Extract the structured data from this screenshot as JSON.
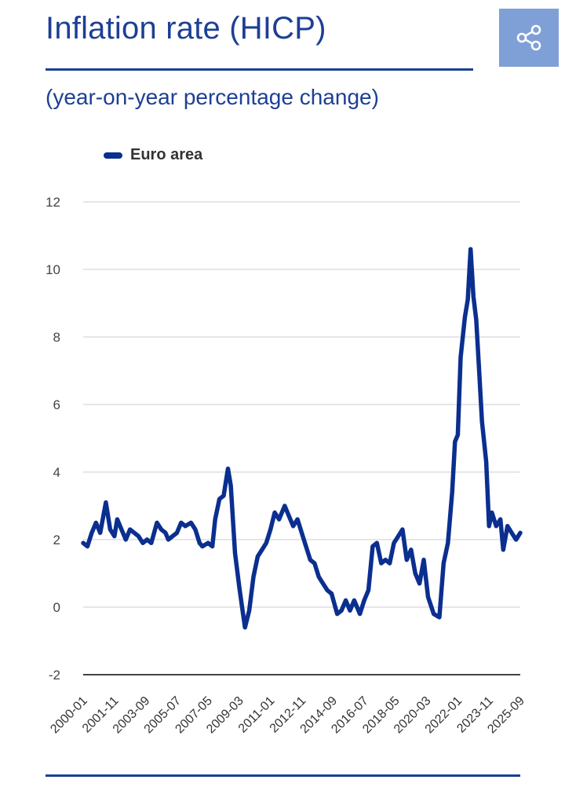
{
  "header": {
    "title": "Inflation rate (HICP)",
    "subtitle": "(year-on-year percentage change)",
    "share_icon": "share-icon"
  },
  "colors": {
    "accent": "#1d3f94",
    "series": "#0b2f8f",
    "share_bg": "#7fa0d6",
    "grid": "#dddddd"
  },
  "chart_data": {
    "type": "line",
    "title": "Inflation rate (HICP)",
    "subtitle": "(year-on-year percentage change)",
    "xlabel": "",
    "ylabel": "",
    "ylim": [
      -2,
      12
    ],
    "yticks": [
      "12",
      "10",
      "8",
      "6",
      "4",
      "2",
      "0",
      "-2"
    ],
    "xticks": [
      "2000-01",
      "2001-11",
      "2003-09",
      "2005-07",
      "2007-05",
      "2009-03",
      "2011-01",
      "2012-11",
      "2014-09",
      "2016-07",
      "2018-05",
      "2020-03",
      "2022-01",
      "2023-11",
      "2025-09"
    ],
    "grid": true,
    "legend": {
      "position": "top-left",
      "entries": [
        "Euro area"
      ]
    },
    "series": [
      {
        "name": "Euro area",
        "x": [
          "2000-01",
          "2000-04",
          "2000-07",
          "2000-10",
          "2001-01",
          "2001-05",
          "2001-08",
          "2001-11",
          "2002-01",
          "2002-04",
          "2002-07",
          "2002-10",
          "2003-01",
          "2003-04",
          "2003-07",
          "2003-10",
          "2004-01",
          "2004-05",
          "2004-08",
          "2004-11",
          "2005-01",
          "2005-04",
          "2005-07",
          "2005-10",
          "2006-01",
          "2006-05",
          "2006-08",
          "2006-11",
          "2007-01",
          "2007-05",
          "2007-08",
          "2007-10",
          "2008-01",
          "2008-04",
          "2008-07",
          "2008-09",
          "2008-12",
          "2009-03",
          "2009-05",
          "2009-07",
          "2009-10",
          "2010-01",
          "2010-04",
          "2010-07",
          "2010-10",
          "2011-01",
          "2011-04",
          "2011-07",
          "2011-11",
          "2012-02",
          "2012-05",
          "2012-08",
          "2012-11",
          "2013-02",
          "2013-05",
          "2013-08",
          "2013-11",
          "2014-02",
          "2014-05",
          "2014-08",
          "2014-12",
          "2015-03",
          "2015-06",
          "2015-09",
          "2015-12",
          "2016-04",
          "2016-07",
          "2016-10",
          "2017-01",
          "2017-04",
          "2017-07",
          "2017-10",
          "2018-01",
          "2018-04",
          "2018-07",
          "2018-10",
          "2019-01",
          "2019-04",
          "2019-07",
          "2019-10",
          "2020-01",
          "2020-04",
          "2020-08",
          "2020-12",
          "2021-03",
          "2021-06",
          "2021-09",
          "2021-11",
          "2022-01",
          "2022-03",
          "2022-06",
          "2022-08",
          "2022-10",
          "2022-12",
          "2023-02",
          "2023-04",
          "2023-06",
          "2023-09",
          "2023-11",
          "2024-01",
          "2024-04",
          "2024-07",
          "2024-09",
          "2024-12",
          "2025-03",
          "2025-06",
          "2025-09"
        ],
        "values": [
          1.9,
          1.8,
          2.2,
          2.5,
          2.2,
          3.1,
          2.3,
          2.1,
          2.6,
          2.3,
          2.0,
          2.3,
          2.2,
          2.1,
          1.9,
          2.0,
          1.9,
          2.5,
          2.3,
          2.2,
          2.0,
          2.1,
          2.2,
          2.5,
          2.4,
          2.5,
          2.3,
          1.9,
          1.8,
          1.9,
          1.8,
          2.6,
          3.2,
          3.3,
          4.1,
          3.6,
          1.6,
          0.6,
          0.0,
          -0.6,
          -0.1,
          0.9,
          1.5,
          1.7,
          1.9,
          2.3,
          2.8,
          2.6,
          3.0,
          2.7,
          2.4,
          2.6,
          2.2,
          1.8,
          1.4,
          1.3,
          0.9,
          0.7,
          0.5,
          0.4,
          -0.2,
          -0.1,
          0.2,
          -0.1,
          0.2,
          -0.2,
          0.2,
          0.5,
          1.8,
          1.9,
          1.3,
          1.4,
          1.3,
          1.9,
          2.1,
          2.3,
          1.4,
          1.7,
          1.0,
          0.7,
          1.4,
          0.3,
          -0.2,
          -0.3,
          1.3,
          1.9,
          3.4,
          4.9,
          5.1,
          7.4,
          8.6,
          9.1,
          10.6,
          9.2,
          8.5,
          7.0,
          5.5,
          4.3,
          2.4,
          2.8,
          2.4,
          2.6,
          1.7,
          2.4,
          2.2,
          2.0,
          2.2
        ]
      }
    ]
  },
  "legend_label": "Euro area"
}
